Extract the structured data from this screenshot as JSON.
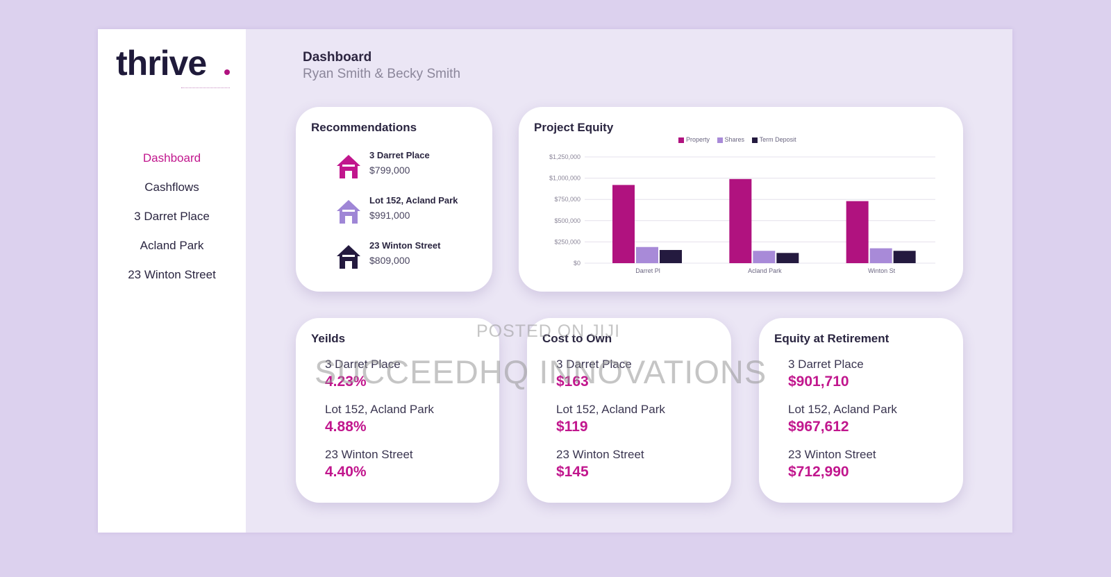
{
  "brand": {
    "logo_text": "thrive"
  },
  "nav": {
    "items": [
      "Dashboard",
      "Cashflows",
      "3 Darret Place",
      "Acland Park",
      "23 Winton Street"
    ]
  },
  "header": {
    "title": "Dashboard",
    "subtitle": "Ryan Smith & Becky Smith"
  },
  "recommendations": {
    "title": "Recommendations",
    "items": [
      {
        "name": "3 Darret Place",
        "price": "$799,000",
        "icon": "house-icon",
        "color": "#c1168d"
      },
      {
        "name": "Lot 152, Acland Park",
        "price": "$991,000",
        "icon": "house-icon",
        "color": "#9f86d6"
      },
      {
        "name": "23 Winton Street",
        "price": "$809,000",
        "icon": "house-icon",
        "color": "#241a3f"
      }
    ]
  },
  "project_equity": {
    "title": "Project Equity"
  },
  "chart_data": {
    "type": "bar",
    "title": "Project Equity",
    "categories": [
      "Darret Pl",
      "Acland Park",
      "Winton St"
    ],
    "series": [
      {
        "name": "Property",
        "values": [
          920000,
          990000,
          730000
        ],
        "color": "#b0127f"
      },
      {
        "name": "Shares",
        "values": [
          190000,
          145000,
          175000
        ],
        "color": "#a88ad8"
      },
      {
        "name": "Term Deposit",
        "values": [
          155000,
          120000,
          145000
        ],
        "color": "#241a3f"
      }
    ],
    "yticks": [
      "$0",
      "$250,000",
      "$500,000",
      "$750,000",
      "$1,000,000",
      "$1,250,000"
    ],
    "ylim": [
      0,
      1250000
    ],
    "grid": true,
    "legend": "top"
  },
  "yields": {
    "title": "Yeilds",
    "items": [
      {
        "name": "3 Darret Place",
        "value": "4.23%"
      },
      {
        "name": "Lot 152, Acland Park",
        "value": "4.88%"
      },
      {
        "name": "23 Winton Street",
        "value": "4.40%"
      }
    ]
  },
  "cost_to_own": {
    "title": "Cost to Own",
    "items": [
      {
        "name": "3 Darret Place",
        "value": "$163"
      },
      {
        "name": "Lot 152, Acland Park",
        "value": "$119"
      },
      {
        "name": "23 Winton Street",
        "value": "$145"
      }
    ]
  },
  "equity_retirement": {
    "title": "Equity at Retirement",
    "items": [
      {
        "name": "3 Darret Place",
        "value": "$901,710"
      },
      {
        "name": "Lot 152, Acland Park",
        "value": "$967,612"
      },
      {
        "name": "23 Winton Street",
        "value": "$712,990"
      }
    ]
  },
  "watermark": {
    "line1": "POSTED ON JIJI",
    "line2": "SUCCEEDHQ INNOVATIONS"
  }
}
